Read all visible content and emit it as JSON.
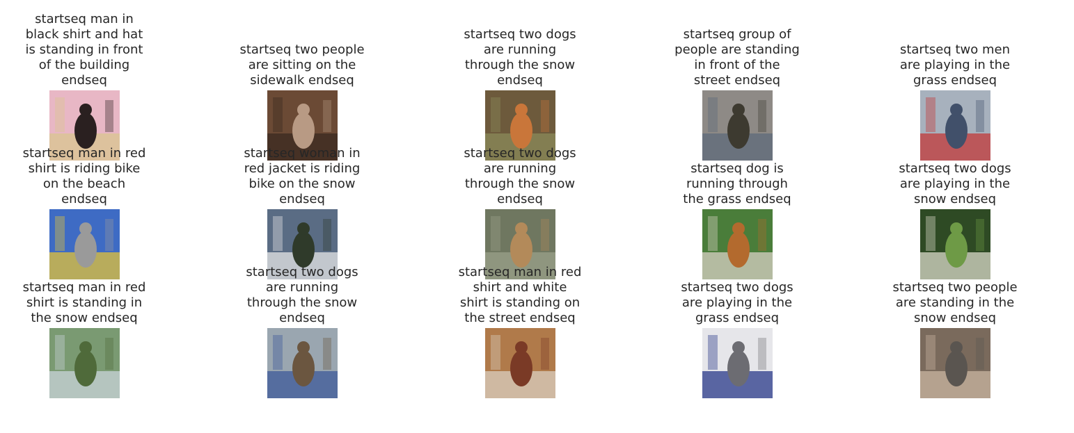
{
  "captions": [
    "startseq man in black shirt and hat is standing in front of the building endseq",
    "startseq two people are sitting on the sidewalk endseq",
    "startseq two dogs are running through the snow endseq",
    "startseq group of people are standing in front of the street endseq",
    "startseq two men are playing in the grass endseq",
    "startseq man in red shirt is riding bike on the beach endseq",
    "startseq woman in red jacket is riding bike on the snow endseq",
    "startseq two dogs are running through the snow endseq",
    "startseq dog is running through the grass endseq",
    "startseq two dogs are playing in the snow endseq",
    "startseq man in red shirt is standing in the snow endseq",
    "startseq two dogs are running through the snow endseq",
    "startseq man in red shirt and white shirt is standing on the street endseq",
    "startseq two dogs are playing in the grass endseq",
    "startseq two people are standing in the snow endseq"
  ],
  "images": [
    {
      "subject": "woman-singing-photo",
      "bg": "#e8b7c5",
      "fg": "#2a2020",
      "accent": "#d9c58f"
    },
    {
      "subject": "cat-indoors-photo",
      "bg": "#6b4a35",
      "fg": "#b89a84",
      "accent": "#3a2a20"
    },
    {
      "subject": "collie-running-photo",
      "bg": "#6d5a3c",
      "fg": "#c9763a",
      "accent": "#8b8b5a"
    },
    {
      "subject": "street-crowd-photo",
      "bg": "#8e8a86",
      "fg": "#3d3a30",
      "accent": "#5d6a7a"
    },
    {
      "subject": "cyclist-parade-photo",
      "bg": "#a7b1bd",
      "fg": "#41506a",
      "accent": "#c23a3a"
    },
    {
      "subject": "skateboarder-photo",
      "bg": "#3e6bc4",
      "fg": "#9a9a9a",
      "accent": "#e1c23a"
    },
    {
      "subject": "mountain-valley-photo",
      "bg": "#5a6c84",
      "fg": "#2f3a2a",
      "accent": "#e6e6e6"
    },
    {
      "subject": "dog-in-water-photo",
      "bg": "#6f7760",
      "fg": "#b38a5a",
      "accent": "#9aa08a"
    },
    {
      "subject": "dog-jumping-ball-photo",
      "bg": "#4a7d3a",
      "fg": "#b36a2e",
      "accent": "#d8d0c4"
    },
    {
      "subject": "forest-path-photo",
      "bg": "#2e4a24",
      "fg": "#6e9a46",
      "accent": "#d9d9c8"
    },
    {
      "subject": "mountain-hiker-photo",
      "bg": "#7a9a72",
      "fg": "#4f6a3a",
      "accent": "#c9d3d9"
    },
    {
      "subject": "dock-dog-photo",
      "bg": "#9aa6b0",
      "fg": "#6b5640",
      "accent": "#3e5a9a"
    },
    {
      "subject": "lobby-interior-photo",
      "bg": "#b07a4a",
      "fg": "#7a3a26",
      "accent": "#d9cfc0"
    },
    {
      "subject": "snow-kids-photo",
      "bg": "#e6e6ea",
      "fg": "#6c6c72",
      "accent": "#2a3a8a"
    },
    {
      "subject": "gym-kids-photo",
      "bg": "#7a6a5c",
      "fg": "#5a5550",
      "accent": "#c9b5a0"
    }
  ]
}
